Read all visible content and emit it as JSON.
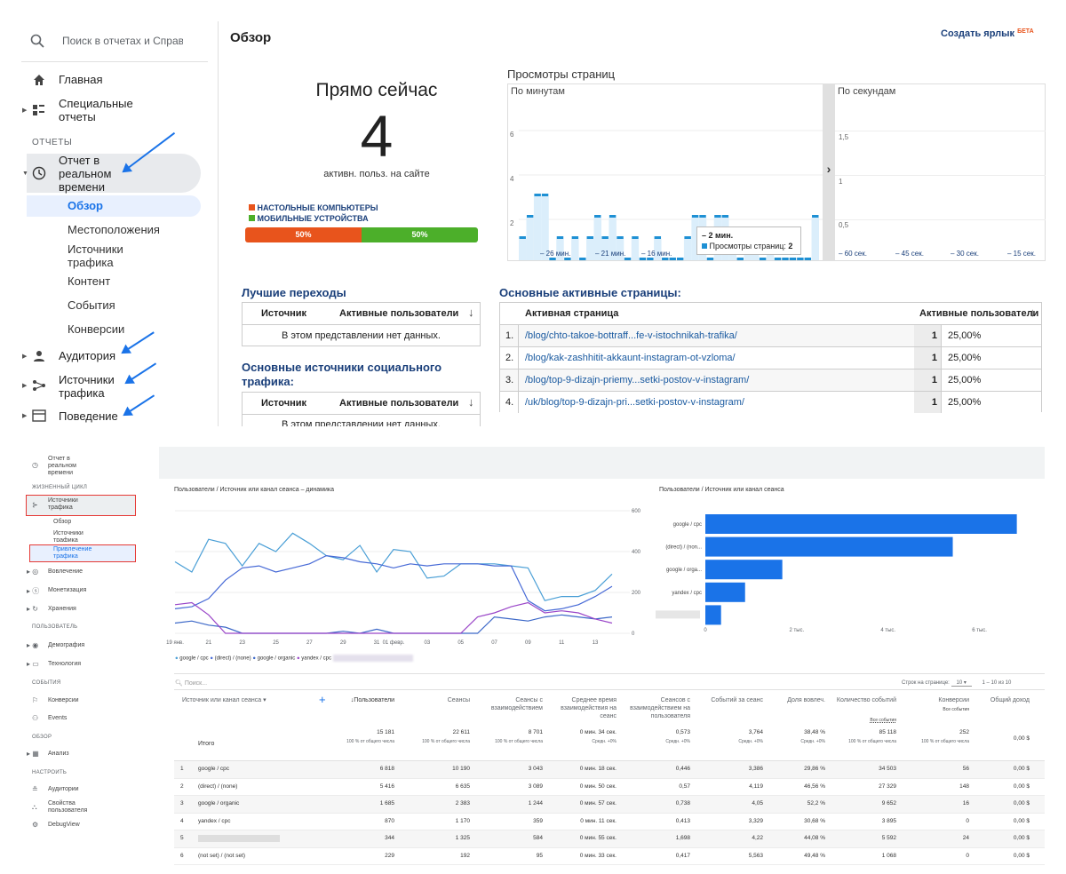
{
  "ua": {
    "search_placeholder": "Поиск в отчетах и Справке",
    "nav": {
      "home": "Главная",
      "custom_reports": "Специальные отчеты",
      "reports_section": "ОТЧЕТЫ",
      "realtime": "Отчет в реальном времени",
      "realtime_sub": [
        "Обзор",
        "Местоположения",
        "Источники трафика",
        "Контент",
        "События",
        "Конверсии"
      ],
      "audience": "Аудитория",
      "acquisition": "Источники трафика",
      "behavior": "Поведение"
    },
    "page_title": "Обзор",
    "create_shortcut": "Создать ярлык",
    "beta": "БЕТА",
    "right_now": {
      "title": "Прямо сейчас",
      "count": "4",
      "caption": "активн. польз. на сайте",
      "legend_desktop": "НАСТОЛЬНЫЕ КОМПЬЮТЕРЫ",
      "legend_mobile": "МОБИЛЬНЫЕ УСТРОЙСТВА",
      "desktop_pct": "50%",
      "mobile_pct": "50%",
      "desktop_share": 0.5,
      "colors": {
        "desktop": "#e8541c",
        "mobile": "#4caf2a"
      }
    },
    "pageviews": {
      "title": "Просмотры страниц",
      "per_minute_label": "По минутам",
      "per_second_label": "По секундам",
      "minute_yticks": [
        "6",
        "4",
        "2"
      ],
      "minute_xticks": [
        "– 26 мин.",
        "– 21 мин.",
        "– 16 мин."
      ],
      "second_yticks": [
        "1,5",
        "1",
        "0,5"
      ],
      "second_xticks": [
        "– 60 сек.",
        "– 45 сек.",
        "– 30 сек.",
        "– 15 сек."
      ],
      "tooltip_time": "– 2 мин.",
      "tooltip_label": "Просмотры страниц:",
      "tooltip_value": "2",
      "arrow": "›"
    },
    "top_referrals": {
      "title": "Лучшие переходы",
      "col_source": "Источник",
      "col_active": "Активные пользователи",
      "empty": "В этом представлении нет данных."
    },
    "top_social": {
      "title": "Основные источники социального трафика:",
      "col_source": "Источник",
      "col_active": "Активные пользователи",
      "empty": "В этом представлении нет данных."
    },
    "top_pages": {
      "title": "Основные активные страницы:",
      "col_page": "Активная страница",
      "col_active": "Активные пользователи",
      "rows": [
        {
          "n": "1.",
          "page": "/blog/chto-takoe-bottraff...fe-v-istochnikah-trafika/",
          "count": "1",
          "pct": "25,00%"
        },
        {
          "n": "2.",
          "page": "/blog/kak-zashhitit-akkaunt-instagram-ot-vzloma/",
          "count": "1",
          "pct": "25,00%"
        },
        {
          "n": "3.",
          "page": "/blog/top-9-dizajn-priemy...setki-postov-v-instagram/",
          "count": "1",
          "pct": "25,00%"
        },
        {
          "n": "4.",
          "page": "/uk/blog/top-9-dizajn-pri...setki-postov-v-instagram/",
          "count": "1",
          "pct": "25,00%"
        }
      ]
    },
    "chart_data": {
      "type": "bar",
      "title": "Просмотры страниц",
      "x_label": "По минутам",
      "ylim": [
        0,
        7
      ],
      "values": [
        1,
        2,
        3,
        3,
        0,
        1,
        0,
        1,
        0,
        1,
        2,
        1,
        2,
        1,
        0,
        1,
        0,
        0,
        1,
        0,
        0,
        0,
        1,
        2,
        2,
        0,
        2,
        2,
        1,
        0,
        1,
        1,
        0,
        1,
        0,
        0,
        0,
        0,
        0,
        2
      ]
    }
  },
  "ga4": {
    "nav": {
      "realtime": "Отчет в реальном времени",
      "lifecycle": "ЖИЗНЕННЫЙ ЦИКЛ",
      "acquisition": "Источники трафика",
      "overview": "Обзор",
      "user_acquisition": "Источники трафика",
      "traffic_acquisition": "Привлечение трафика",
      "engagement": "Вовлечение",
      "monetization": "Монетизация",
      "retention": "Хранения",
      "user_section": "ПОЛЬЗОВАТЕЛЬ",
      "demographics": "Демография",
      "technology": "Технология",
      "events_section": "СОБЫТИЯ",
      "conversions": "Конверсии",
      "events": "Events",
      "explore_section": "ОБЗОР",
      "analysis": "Анализ",
      "configure_section": "НАСТРОИТЬ",
      "audiences": "Аудитории",
      "user_props": "Свойства пользователя",
      "debugview": "DebugView"
    },
    "line_chart_title": "Пользователи / Источник или канал сеанса – динамика",
    "bar_chart_title": "Пользователи / Источник или канал сеанса",
    "legend": [
      "google / cpc",
      "(direct) / (none)",
      "google / organic",
      "yandex / cpc"
    ],
    "search_placeholder": "Поиск...",
    "rows_per_page_label": "Строк на странице:",
    "rows_per_page": "10",
    "pagination": "1 – 10 из 10",
    "dim_header": "Источник или канал сеанса",
    "add": "+",
    "headers": [
      "↓Пользователи",
      "Сеансы",
      "Сеансы с взаимодействием",
      "Среднее время взаимодействия на сеанс",
      "Сеансов с взаимодействием на пользователя",
      "Событий за сеанс",
      "Доля вовлеч.",
      "Количество событий",
      "Конверсии",
      "Общий доход"
    ],
    "header_subs": {
      "events": "Все события",
      "conversions": "Все события"
    },
    "totals": {
      "label": "Итого",
      "values": [
        "15 181",
        "22 611",
        "8 701",
        "0 мин. 34 сек.",
        "0,573",
        "3,764",
        "38,48 %",
        "85 118",
        "252",
        "0,00 $"
      ],
      "subs": [
        "100 % от общего числа",
        "100 % от общего числа",
        "100 % от общего числа",
        "Средн. +0%",
        "Средн. +0%",
        "Средн. +0%",
        "Средн. +0%",
        "100 % от общего числа",
        "100 % от общего числа",
        ""
      ]
    },
    "rows": [
      {
        "n": "1",
        "name": "google / cpc",
        "values": [
          "6 818",
          "10 190",
          "3 043",
          "0 мин. 18 сек.",
          "0,446",
          "3,386",
          "29,86 %",
          "34 503",
          "56",
          "0,00 $"
        ]
      },
      {
        "n": "2",
        "name": "(direct) / (none)",
        "values": [
          "5 416",
          "6 635",
          "3 089",
          "0 мин. 50 сек.",
          "0,57",
          "4,119",
          "46,56 %",
          "27 329",
          "148",
          "0,00 $"
        ]
      },
      {
        "n": "3",
        "name": "google / organic",
        "values": [
          "1 685",
          "2 383",
          "1 244",
          "0 мин. 57 сек.",
          "0,738",
          "4,05",
          "52,2 %",
          "9 652",
          "16",
          "0,00 $"
        ]
      },
      {
        "n": "4",
        "name": "yandex / cpc",
        "values": [
          "870",
          "1 170",
          "359",
          "0 мин. 11 сек.",
          "0,413",
          "3,329",
          "30,68 %",
          "3 895",
          "0",
          "0,00 $"
        ]
      },
      {
        "n": "5",
        "name": "",
        "values": [
          "344",
          "1 325",
          "584",
          "0 мин. 55 сек.",
          "1,698",
          "4,22",
          "44,08 %",
          "5 592",
          "24",
          "0,00 $"
        ]
      },
      {
        "n": "6",
        "name": "(not set) / (not set)",
        "values": [
          "229",
          "192",
          "95",
          "0 мин. 33 сек.",
          "0,417",
          "5,563",
          "49,48 %",
          "1 068",
          "0",
          "0,00 $"
        ]
      }
    ],
    "chart_data": [
      {
        "type": "line",
        "title": "Пользователи / Источник или канал сеанса – динамика",
        "x": [
          "19",
          "",
          "21",
          "",
          "23",
          "",
          "25",
          "",
          "27",
          "",
          "29",
          "",
          "31",
          "01",
          "",
          "03",
          "",
          "05",
          "",
          "07",
          "",
          "09",
          "",
          "11",
          "",
          "13",
          ""
        ],
        "x_tick_labels": [
          "19 янв.",
          "21",
          "23",
          "25",
          "27",
          "29",
          "31",
          "01 февр.",
          "03",
          "05",
          "07",
          "09",
          "11",
          "13"
        ],
        "y_ticks": [
          "600",
          "400",
          "200",
          "0"
        ],
        "ylim": [
          0,
          600
        ],
        "series": [
          {
            "name": "google / cpc",
            "color": "#4a9fd6",
            "values": [
              350,
              300,
              460,
              440,
              330,
              440,
              400,
              490,
              440,
              380,
              360,
              430,
              300,
              410,
              400,
              270,
              280,
              340,
              340,
              340,
              330,
              320,
              160,
              180,
              180,
              210,
              290
            ]
          },
          {
            "name": "(direct) / (none)",
            "color": "#4669d6",
            "values": [
              120,
              130,
              170,
              260,
              320,
              330,
              300,
              320,
              340,
              380,
              370,
              350,
              340,
              320,
              340,
              330,
              340,
              340,
              340,
              330,
              330,
              160,
              110,
              120,
              140,
              180,
              230
            ]
          },
          {
            "name": "google / organic",
            "color": "#3c68c8",
            "values": [
              50,
              60,
              40,
              30,
              0,
              0,
              0,
              0,
              0,
              0,
              10,
              0,
              20,
              0,
              0,
              0,
              0,
              0,
              0,
              80,
              70,
              60,
              80,
              90,
              80,
              70,
              80
            ]
          },
          {
            "name": "yandex / cpc",
            "color": "#9a46c8",
            "values": [
              140,
              150,
              90,
              0,
              0,
              0,
              0,
              0,
              0,
              0,
              0,
              0,
              0,
              0,
              0,
              0,
              0,
              0,
              80,
              100,
              130,
              150,
              100,
              110,
              100,
              70,
              50
            ]
          }
        ]
      },
      {
        "type": "bar",
        "title": "Пользователи / Источник или канал сеанса",
        "categories": [
          "google / cpc",
          "(direct) / (non...",
          "google / orga...",
          "yandex / cpc",
          ""
        ],
        "values": [
          6818,
          5416,
          1685,
          870,
          344
        ],
        "x_ticks": [
          "0",
          "2 тыс.",
          "4 тыс.",
          "6 тыс."
        ],
        "xlim": [
          0,
          7000
        ],
        "color": "#1a73e8"
      }
    ]
  }
}
